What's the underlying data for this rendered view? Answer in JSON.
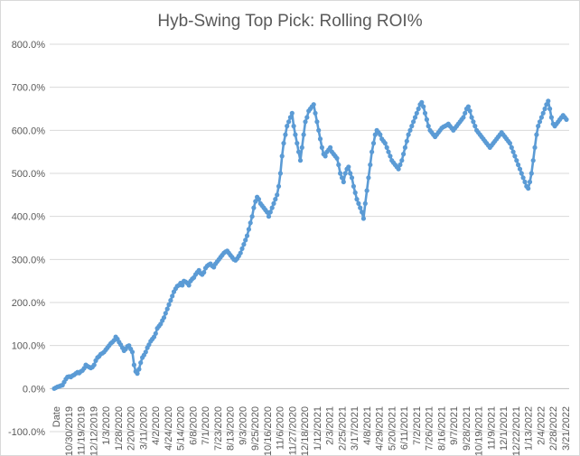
{
  "chart_data": {
    "type": "line",
    "title": "Hyb-Swing Top Pick: Rolling ROI%",
    "xlabel": "",
    "ylabel": "",
    "y_tick_labels": [
      "-100.0%",
      "0.0%",
      "100.0%",
      "200.0%",
      "300.0%",
      "400.0%",
      "500.0%",
      "600.0%",
      "700.0%",
      "800.0%"
    ],
    "ylim": [
      -100,
      800
    ],
    "x_tick_labels": [
      "Date",
      "10/30/2019",
      "11/19/2019",
      "12/12/2019",
      "1/3/2020",
      "1/28/2020",
      "2/20/2020",
      "3/11/2020",
      "4/2/2020",
      "4/24/2020",
      "5/14/2020",
      "6/8/2020",
      "7/1/2020",
      "7/23/2020",
      "8/13/2020",
      "9/3/2020",
      "9/25/2020",
      "10/16/2020",
      "11/6/2020",
      "11/27/2020",
      "12/18/2020",
      "1/12/2021",
      "2/3/2021",
      "2/25/2021",
      "3/17/2021",
      "4/8/2021",
      "4/29/2021",
      "5/20/2021",
      "6/11/2021",
      "7/2/2021",
      "7/26/2021",
      "8/16/2021",
      "9/7/2021",
      "9/28/2021",
      "10/19/2021",
      "11/9/2021",
      "12/1/2021",
      "12/22/2021",
      "1/13/2022",
      "2/4/2022",
      "2/28/2022",
      "3/21/2022"
    ],
    "grid": true,
    "legend": "none",
    "marker": "circle",
    "color": "#5b9bd5",
    "series": [
      {
        "values": [
          0,
          2,
          4,
          5,
          7,
          8,
          15,
          22,
          27,
          28,
          27,
          30,
          32,
          35,
          38,
          36,
          40,
          42,
          47,
          55,
          52,
          50,
          48,
          50,
          55,
          65,
          72,
          75,
          80,
          82,
          85,
          90,
          95,
          100,
          105,
          108,
          112,
          120,
          115,
          108,
          102,
          95,
          88,
          92,
          98,
          100,
          92,
          85,
          55,
          40,
          35,
          45,
          60,
          72,
          78,
          85,
          95,
          102,
          110,
          115,
          120,
          128,
          140,
          145,
          150,
          158,
          165,
          175,
          185,
          195,
          205,
          215,
          225,
          232,
          238,
          240,
          245,
          240,
          250,
          248,
          245,
          240,
          250,
          255,
          258,
          265,
          270,
          275,
          268,
          265,
          270,
          280,
          285,
          288,
          290,
          285,
          282,
          290,
          295,
          300,
          305,
          310,
          315,
          318,
          320,
          315,
          310,
          305,
          300,
          298,
          302,
          308,
          315,
          325,
          335,
          345,
          355,
          370,
          385,
          400,
          420,
          435,
          445,
          440,
          430,
          425,
          420,
          415,
          410,
          400,
          410,
          420,
          430,
          440,
          450,
          470,
          500,
          540,
          570,
          590,
          610,
          620,
          630,
          640,
          610,
          590,
          570,
          550,
          530,
          560,
          590,
          620,
          630,
          645,
          650,
          655,
          660,
          640,
          620,
          600,
          580,
          560,
          545,
          540,
          550,
          555,
          560,
          550,
          545,
          540,
          535,
          520,
          500,
          490,
          480,
          500,
          510,
          515,
          500,
          490,
          470,
          455,
          440,
          430,
          420,
          410,
          395,
          430,
          460,
          490,
          520,
          550,
          570,
          590,
          600,
          595,
          590,
          580,
          575,
          570,
          560,
          550,
          540,
          530,
          525,
          520,
          515,
          510,
          520,
          530,
          545,
          560,
          575,
          590,
          600,
          610,
          620,
          630,
          640,
          650,
          660,
          665,
          655,
          640,
          625,
          610,
          600,
          595,
          590,
          585,
          590,
          595,
          600,
          605,
          608,
          610,
          612,
          615,
          610,
          605,
          600,
          605,
          610,
          615,
          620,
          625,
          630,
          640,
          650,
          655,
          645,
          630,
          620,
          610,
          600,
          595,
          590,
          585,
          580,
          575,
          570,
          565,
          560,
          565,
          570,
          575,
          580,
          585,
          590,
          595,
          590,
          585,
          580,
          575,
          570,
          560,
          550,
          540,
          530,
          520,
          510,
          500,
          490,
          480,
          470,
          465,
          480,
          500,
          530,
          560,
          590,
          610,
          620,
          630,
          640,
          650,
          660,
          668,
          650,
          630,
          615,
          610,
          615,
          620,
          625,
          630,
          635,
          630,
          625
        ]
      }
    ]
  }
}
